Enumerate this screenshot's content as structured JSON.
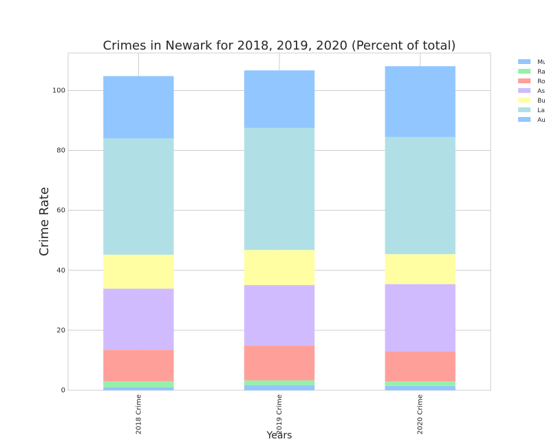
{
  "chart_data": {
    "type": "bar",
    "stacked": true,
    "title": "Crimes in Newark for 2018, 2019, 2020 (Percent of total)",
    "xlabel": "Years",
    "ylabel": "Crime Rate",
    "categories": [
      "2018 Crime",
      "2019 Crime",
      "2020 Crime"
    ],
    "ylim": [
      0,
      112.5
    ],
    "yticks": [
      0,
      20,
      40,
      60,
      80,
      100
    ],
    "grid": true,
    "legend_position": "outside top-right",
    "series": [
      {
        "name": "Mu",
        "color": "#92c6ff",
        "values": [
          1.0,
          1.7,
          1.4
        ]
      },
      {
        "name": "Ra",
        "color": "#97f0aa",
        "values": [
          2.0,
          1.6,
          1.6
        ]
      },
      {
        "name": "Ro",
        "color": "#ff9f9a",
        "values": [
          10.5,
          11.6,
          10.0
        ]
      },
      {
        "name": "As",
        "color": "#d0bbff",
        "values": [
          20.4,
          20.2,
          22.4
        ]
      },
      {
        "name": "Bu",
        "color": "#fffea3",
        "values": [
          11.3,
          11.7,
          10.0
        ]
      },
      {
        "name": "La",
        "color": "#b0e0e6",
        "values": [
          38.8,
          40.7,
          39.1
        ]
      },
      {
        "name": "Au",
        "color": "#92c6ff",
        "values": [
          20.8,
          19.2,
          23.6
        ]
      }
    ]
  }
}
